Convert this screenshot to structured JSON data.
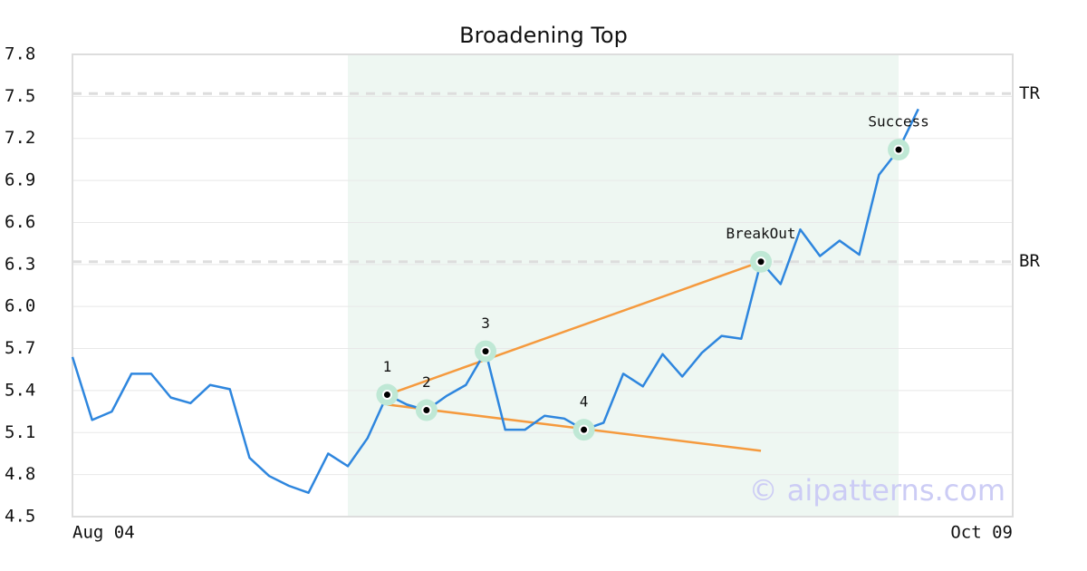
{
  "chart_data": {
    "type": "line",
    "title": "Broadening Top",
    "x": [
      0,
      1,
      2,
      3,
      4,
      5,
      6,
      7,
      8,
      9,
      10,
      11,
      12,
      13,
      14,
      15,
      16,
      17,
      18,
      19,
      20,
      21,
      22,
      23,
      24,
      25,
      26,
      27,
      28,
      29,
      30,
      31,
      32,
      33,
      34,
      35,
      36,
      37,
      38,
      39,
      40,
      41,
      42,
      43
    ],
    "series": [
      {
        "color": "#2e86de",
        "values": [
          5.64,
          5.19,
          5.25,
          5.52,
          5.52,
          5.35,
          5.31,
          5.44,
          5.41,
          4.92,
          4.79,
          4.72,
          4.67,
          4.95,
          4.86,
          5.06,
          5.37,
          5.3,
          5.26,
          5.36,
          5.44,
          5.68,
          5.12,
          5.12,
          5.22,
          5.2,
          5.12,
          5.17,
          5.52,
          5.43,
          5.66,
          5.5,
          5.67,
          5.79,
          5.77,
          6.32,
          6.16,
          6.55,
          6.36,
          6.47,
          6.37,
          6.94,
          7.12,
          7.41
        ]
      }
    ],
    "xlim": [
      0,
      47.8
    ],
    "xticks": [
      {
        "value": 0,
        "label": "Aug 04"
      },
      {
        "value": 47.8,
        "label": "Oct 09"
      }
    ],
    "ylim": [
      4.5,
      7.8
    ],
    "yticks": [
      {
        "value": 4.5,
        "label": "4.5"
      },
      4.8,
      5.1,
      5.4,
      5.7,
      {
        "value": 6,
        "label": "6.0"
      },
      6.3,
      6.6,
      6.9,
      7.2,
      7.5,
      7.8
    ],
    "grid": true,
    "highlight": [
      14,
      42
    ],
    "highlight_color": "#eef7f2",
    "levels": [
      {
        "label": "TR",
        "value": 7.52
      },
      {
        "label": "BR",
        "value": 6.32
      }
    ],
    "trendlines": [
      {
        "color": "#f59a3e",
        "x": [
          16,
          35
        ],
        "y": [
          5.37,
          6.32
        ]
      },
      {
        "color": "#f59a3e",
        "x": [
          16,
          35
        ],
        "y": [
          5.3,
          4.97
        ]
      }
    ],
    "annotations": [
      {
        "label": "1",
        "x": 16,
        "y": 5.37
      },
      {
        "label": "2",
        "x": 18,
        "y": 5.26
      },
      {
        "label": "3",
        "x": 21,
        "y": 5.68
      },
      {
        "label": "4",
        "x": 26,
        "y": 5.12
      },
      {
        "label": "BreakOut",
        "x": 35,
        "y": 6.32
      },
      {
        "label": "Success",
        "x": 42,
        "y": 7.12
      }
    ],
    "watermark": "© aipatterns.com"
  }
}
